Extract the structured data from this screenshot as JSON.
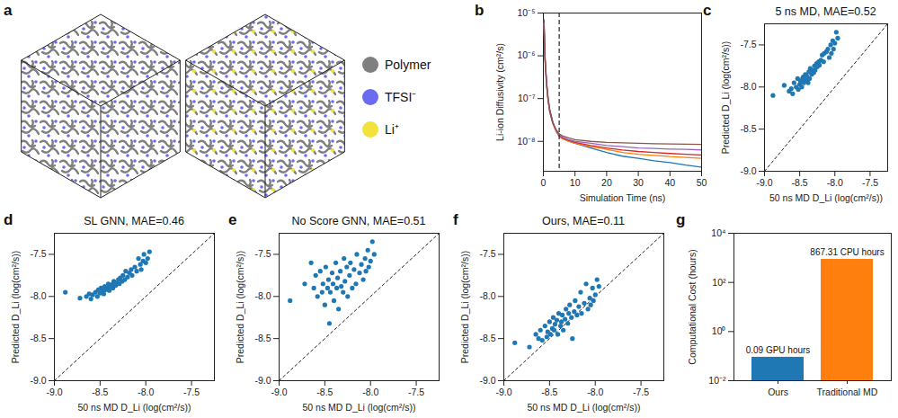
{
  "chart_data": [
    {
      "panel": "a",
      "type": "illustration",
      "legend": "right",
      "series": [
        {
          "name": "Polymer",
          "color": "#7f7f7f"
        },
        {
          "name": "TFSI⁻",
          "color": "#6b6bef"
        },
        {
          "name": "Li⁺",
          "color": "#f2e23c"
        }
      ]
    },
    {
      "panel": "b",
      "type": "line",
      "log": "y",
      "xlabel": "Simulation Time (ns)",
      "ylabel": "Li-ion Diffusivity (cm²/s)",
      "x": [
        0.2,
        0.5,
        1,
        1.5,
        2,
        3,
        4,
        5,
        6,
        8,
        10,
        15,
        20,
        25,
        30,
        35,
        40,
        45,
        50
      ],
      "series": [
        {
          "color": "#1f77b4",
          "values": [
            7e-06,
            1e-06,
            2.5e-07,
            1e-07,
            5.5e-08,
            2.8e-08,
            1.8e-08,
            1.3e-08,
            1.2e-08,
            1e-08,
            9e-09,
            7e-09,
            5.5e-09,
            4.5e-09,
            4e-09,
            3.5e-09,
            3.2e-09,
            2.8e-09,
            2.5e-09
          ]
        },
        {
          "color": "#ff7f0e",
          "values": [
            6e-06,
            9e-07,
            2.2e-07,
            9e-08,
            5e-08,
            2.6e-08,
            1.7e-08,
            1.3e-08,
            1.15e-08,
            1e-08,
            9e-09,
            7.5e-09,
            6.5e-09,
            5.5e-09,
            5e-09,
            4.7e-09,
            4.4e-09,
            4.2e-09,
            4e-09
          ]
        },
        {
          "color": "#d62728",
          "values": [
            6.5e-06,
            1e-06,
            2.4e-07,
            1e-07,
            5.5e-08,
            2.7e-08,
            1.8e-08,
            1.4e-08,
            1.2e-08,
            1.05e-08,
            9.5e-09,
            8e-09,
            7e-09,
            6.3e-09,
            5.8e-09,
            5.5e-09,
            5.2e-09,
            5e-09,
            4.8e-09
          ]
        },
        {
          "color": "#9467bd",
          "values": [
            5.5e-06,
            9e-07,
            2.2e-07,
            9.5e-08,
            5e-08,
            2.6e-08,
            1.8e-08,
            1.4e-08,
            1.25e-08,
            1.1e-08,
            1e-08,
            9e-09,
            8e-09,
            7.5e-09,
            7e-09,
            6.8e-09,
            6.6e-09,
            6.5e-09,
            6.3e-09
          ]
        },
        {
          "color": "#8c564b",
          "values": [
            5e-06,
            8e-07,
            2e-07,
            9e-08,
            5e-08,
            2.7e-08,
            1.9e-08,
            1.5e-08,
            1.35e-08,
            1.2e-08,
            1.1e-08,
            1e-08,
            9.5e-09,
            9.2e-09,
            9e-09,
            8.8e-09,
            8.7e-09,
            8.6e-09,
            8.5e-09
          ]
        }
      ],
      "vline": 5,
      "xlim": [
        0,
        50
      ],
      "xticks": [
        0,
        10,
        20,
        30,
        40,
        50
      ],
      "ylim": [
        2e-09,
        1e-05
      ],
      "yticks": [
        {
          "value": 1e-08,
          "label": "10⁻⁸"
        },
        {
          "value": 1e-07,
          "label": "10⁻⁷"
        },
        {
          "value": 1e-06,
          "label": "10⁻⁶"
        },
        {
          "value": 1e-05,
          "label": "10⁻⁵"
        }
      ]
    },
    {
      "panel": "c",
      "type": "scatter",
      "title": "5 ns MD, MAE=0.52",
      "color": "#1f77b4",
      "xlabel": "50 ns MD D_Li (log(cm²/s))",
      "ylabel": "Predicted D_Li (log(cm²/s))",
      "x": [
        -8.88,
        -8.72,
        -8.65,
        -8.62,
        -8.6,
        -8.58,
        -8.55,
        -8.53,
        -8.52,
        -8.5,
        -8.49,
        -8.47,
        -8.46,
        -8.45,
        -8.44,
        -8.42,
        -8.41,
        -8.4,
        -8.38,
        -8.37,
        -8.36,
        -8.35,
        -8.33,
        -8.32,
        -8.3,
        -8.29,
        -8.28,
        -8.26,
        -8.25,
        -8.23,
        -8.22,
        -8.2,
        -8.18,
        -8.16,
        -8.15,
        -8.12,
        -8.1,
        -8.08,
        -8.06,
        -8.05,
        -8.03,
        -8.02,
        -8.0,
        -7.98,
        -7.96
      ],
      "values": [
        -8.1,
        -7.98,
        -8.05,
        -8.02,
        -8.08,
        -7.95,
        -8.0,
        -7.9,
        -8.03,
        -7.97,
        -7.93,
        -8.0,
        -7.9,
        -7.88,
        -7.95,
        -7.85,
        -7.92,
        -7.87,
        -7.95,
        -7.82,
        -7.9,
        -7.78,
        -7.85,
        -7.8,
        -7.83,
        -7.75,
        -7.8,
        -7.72,
        -7.76,
        -7.7,
        -7.74,
        -7.68,
        -7.62,
        -7.7,
        -7.6,
        -7.58,
        -7.55,
        -7.65,
        -7.5,
        -7.6,
        -7.45,
        -7.55,
        -7.48,
        -7.35,
        -7.42
      ],
      "xlim": [
        -9,
        -7.25
      ],
      "xticks": [
        {
          "value": -9,
          "label": "-9.0"
        },
        -8.5,
        {
          "value": -8,
          "label": "-8.0"
        },
        -7.5
      ],
      "ylim": [
        -9,
        -7.25
      ],
      "yticks": [
        {
          "value": -9,
          "label": "-9.0"
        },
        -8.5,
        {
          "value": -8,
          "label": "-8.0"
        },
        -7.5
      ]
    },
    {
      "panel": "d",
      "type": "scatter",
      "title": "SL GNN, MAE=0.46",
      "color": "#1f77b4",
      "xlabel": "50 ns MD D_Li (log(cm²/s))",
      "ylabel": "Predicted D_Li (log(cm²/s))",
      "x": [
        -8.88,
        -8.72,
        -8.65,
        -8.62,
        -8.6,
        -8.58,
        -8.55,
        -8.53,
        -8.52,
        -8.5,
        -8.49,
        -8.47,
        -8.46,
        -8.45,
        -8.44,
        -8.42,
        -8.41,
        -8.4,
        -8.38,
        -8.37,
        -8.36,
        -8.35,
        -8.33,
        -8.32,
        -8.3,
        -8.29,
        -8.28,
        -8.26,
        -8.25,
        -8.23,
        -8.22,
        -8.2,
        -8.18,
        -8.16,
        -8.15,
        -8.12,
        -8.1,
        -8.08,
        -8.06,
        -8.05,
        -8.03,
        -8.02,
        -8.0,
        -7.98,
        -7.96
      ],
      "values": [
        -7.95,
        -8.02,
        -8.0,
        -7.97,
        -8.03,
        -7.98,
        -7.95,
        -8.0,
        -7.92,
        -7.96,
        -7.9,
        -7.93,
        -7.97,
        -7.88,
        -7.92,
        -7.9,
        -7.85,
        -7.93,
        -7.88,
        -7.86,
        -7.9,
        -7.82,
        -7.87,
        -7.84,
        -7.8,
        -7.85,
        -7.78,
        -7.82,
        -7.75,
        -7.8,
        -7.7,
        -7.77,
        -7.72,
        -7.68,
        -7.75,
        -7.65,
        -7.7,
        -7.55,
        -7.62,
        -7.68,
        -7.58,
        -7.5,
        -7.6,
        -7.55,
        -7.47
      ],
      "xlim": [
        -9,
        -7.25
      ],
      "xticks": [
        {
          "value": -9,
          "label": "-9.0"
        },
        -8.5,
        {
          "value": -8,
          "label": "-8.0"
        },
        -7.5
      ],
      "ylim": [
        -9,
        -7.25
      ],
      "yticks": [
        {
          "value": -9,
          "label": "-9.0"
        },
        -8.5,
        {
          "value": -8,
          "label": "-8.0"
        },
        -7.5
      ]
    },
    {
      "panel": "e",
      "type": "scatter",
      "title": "No Score GNN, MAE=0.51",
      "color": "#1f77b4",
      "xlabel": "50 ns MD D_Li (log(cm²/s))",
      "ylabel": "Predicted D_Li (log(cm²/s))",
      "x": [
        -8.88,
        -8.72,
        -8.65,
        -8.62,
        -8.6,
        -8.58,
        -8.55,
        -8.53,
        -8.52,
        -8.5,
        -8.49,
        -8.47,
        -8.46,
        -8.45,
        -8.44,
        -8.42,
        -8.41,
        -8.4,
        -8.38,
        -8.37,
        -8.36,
        -8.35,
        -8.33,
        -8.32,
        -8.3,
        -8.29,
        -8.28,
        -8.26,
        -8.25,
        -8.23,
        -8.22,
        -8.2,
        -8.18,
        -8.16,
        -8.15,
        -8.12,
        -8.1,
        -8.08,
        -8.06,
        -8.05,
        -8.03,
        -8.02,
        -8.0,
        -7.98,
        -7.96
      ],
      "values": [
        -8.05,
        -7.85,
        -7.6,
        -7.9,
        -7.75,
        -8.0,
        -7.7,
        -7.95,
        -7.85,
        -8.1,
        -7.65,
        -7.9,
        -7.8,
        -8.32,
        -7.95,
        -7.72,
        -7.85,
        -8.05,
        -7.6,
        -7.9,
        -7.78,
        -8.15,
        -7.7,
        -7.88,
        -7.95,
        -7.55,
        -7.82,
        -7.65,
        -8.0,
        -7.75,
        -7.6,
        -7.9,
        -7.68,
        -7.85,
        -7.5,
        -7.72,
        -7.62,
        -7.8,
        -7.55,
        -7.7,
        -7.45,
        -7.65,
        -7.58,
        -7.35,
        -7.5
      ],
      "xlim": [
        -9,
        -7.25
      ],
      "xticks": [
        {
          "value": -9,
          "label": "-9.0"
        },
        -8.5,
        {
          "value": -8,
          "label": "-8.0"
        },
        -7.5
      ],
      "ylim": [
        -9,
        -7.25
      ],
      "yticks": [
        {
          "value": -9,
          "label": "-9.0"
        },
        -8.5,
        {
          "value": -8,
          "label": "-8.0"
        },
        -7.5
      ]
    },
    {
      "panel": "f",
      "type": "scatter",
      "title": "Ours, MAE=0.11",
      "color": "#1f77b4",
      "xlabel": "50 ns MD D_Li (log(cm²/s))",
      "ylabel": "Predicted D_Li (log(cm²/s))",
      "x": [
        -8.88,
        -8.72,
        -8.65,
        -8.62,
        -8.6,
        -8.58,
        -8.55,
        -8.53,
        -8.52,
        -8.5,
        -8.49,
        -8.47,
        -8.46,
        -8.45,
        -8.44,
        -8.42,
        -8.41,
        -8.4,
        -8.38,
        -8.37,
        -8.36,
        -8.35,
        -8.33,
        -8.32,
        -8.3,
        -8.29,
        -8.28,
        -8.26,
        -8.25,
        -8.23,
        -8.22,
        -8.2,
        -8.18,
        -8.16,
        -8.15,
        -8.12,
        -8.1,
        -8.08,
        -8.06,
        -8.05,
        -8.03,
        -8.02,
        -8.0,
        -7.98,
        -7.96
      ],
      "values": [
        -8.55,
        -8.6,
        -8.45,
        -8.5,
        -8.4,
        -8.52,
        -8.35,
        -8.48,
        -8.42,
        -8.3,
        -8.45,
        -8.38,
        -8.25,
        -8.4,
        -8.33,
        -8.28,
        -8.45,
        -8.2,
        -8.35,
        -8.3,
        -8.22,
        -8.4,
        -8.27,
        -8.15,
        -8.32,
        -8.2,
        -8.1,
        -8.25,
        -8.5,
        -8.18,
        -8.05,
        -8.22,
        -8.12,
        -7.95,
        -8.2,
        -8.08,
        -7.85,
        -8.15,
        -8.02,
        -8.1,
        -7.9,
        -8.05,
        -7.98,
        -7.8,
        -7.88
      ],
      "xlim": [
        -9,
        -7.25
      ],
      "xticks": [
        {
          "value": -9,
          "label": "-9.0"
        },
        -8.5,
        {
          "value": -8,
          "label": "-8.0"
        },
        -7.5
      ],
      "ylim": [
        -9,
        -7.25
      ],
      "yticks": [
        {
          "value": -9,
          "label": "-9.0"
        },
        -8.5,
        {
          "value": -8,
          "label": "-8.0"
        },
        -7.5
      ]
    },
    {
      "panel": "g",
      "type": "bar",
      "log": "y",
      "ylabel": "Computational Cost (hours)",
      "categories": [
        "Ours",
        "Traditional MD"
      ],
      "values": [
        0.09,
        867.31
      ],
      "value_labels": [
        "0.09 GPU hours",
        "867.31 CPU hours"
      ],
      "data_labels": true,
      "colors": [
        "#1f77b4",
        "#ff7f0e"
      ],
      "ylim": [
        0.01,
        10000
      ],
      "yticks": [
        {
          "value": 0.01,
          "label": "10⁻²"
        },
        {
          "value": 1,
          "label": "10⁰"
        },
        {
          "value": 100,
          "label": "10²"
        },
        {
          "value": 10000,
          "label": "10⁴"
        }
      ]
    }
  ]
}
